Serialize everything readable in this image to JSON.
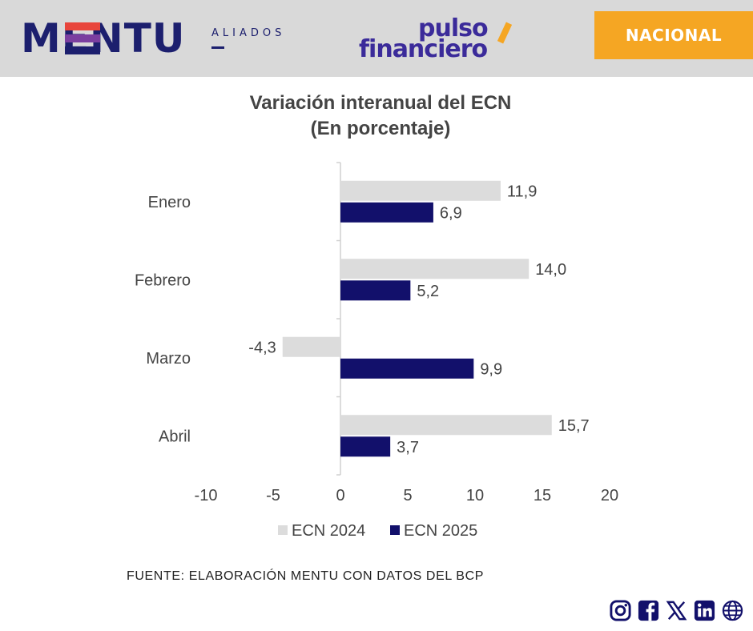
{
  "header": {
    "brand": "MENTU",
    "brand_sub": "ALIADOS",
    "partner_line1": "pulso",
    "partner_line2": "financiero",
    "section_badge": "NACIONAL",
    "colors": {
      "header_bg": "#d9d9d9",
      "badge": "#f5a623",
      "brand_navy": "#1c1f6e",
      "partner_purple": "#3b2b9a"
    }
  },
  "chart_data": {
    "type": "bar",
    "orientation": "horizontal",
    "title": "Variación interanual del ECN",
    "subtitle": "(En porcentaje)",
    "categories": [
      "Enero",
      "Febrero",
      "Marzo",
      "Abril"
    ],
    "series": [
      {
        "name": "ECN 2024",
        "values": [
          11.9,
          14.0,
          -4.3,
          15.7
        ],
        "labels": [
          "11,9",
          "14,0",
          "-4,3",
          "15,7"
        ],
        "color": "#dcdcdc"
      },
      {
        "name": "ECN 2025",
        "values": [
          6.9,
          5.2,
          9.9,
          3.7
        ],
        "labels": [
          "6,9",
          "5,2",
          "9,9",
          "3,7"
        ],
        "color": "#12106b"
      }
    ],
    "xlim": [
      -10,
      20
    ],
    "xticks": [
      "-10",
      "-5",
      "0",
      "5",
      "10",
      "15",
      "20"
    ],
    "grid": false,
    "legend_position": "bottom"
  },
  "footer": {
    "source": "FUENTE: ELABORACIÓN MENTU CON DATOS DEL BCP",
    "social_icons": [
      "instagram-icon",
      "facebook-icon",
      "x-icon",
      "linkedin-icon",
      "globe-icon"
    ]
  }
}
